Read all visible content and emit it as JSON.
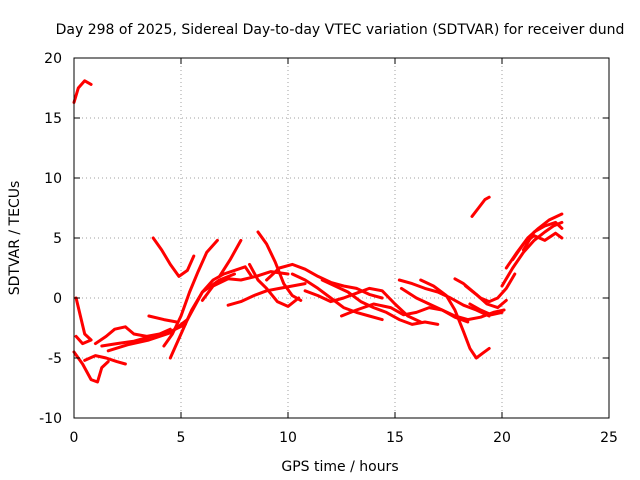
{
  "chart_data": {
    "type": "scatter",
    "title": "Day 298 of 2025, Sidereal Day-to-day VTEC variation (SDTVAR) for receiver dund",
    "xlabel": "GPS time / hours",
    "ylabel": "SDTVAR / TECUs",
    "xlim": [
      0,
      25
    ],
    "ylim": [
      -10,
      20
    ],
    "xticks": [
      0,
      5,
      10,
      15,
      20,
      25
    ],
    "yticks": [
      -10,
      -5,
      0,
      5,
      10,
      15,
      20
    ],
    "xtick_labels": [
      "0",
      "5",
      "10",
      "15",
      "20",
      "25"
    ],
    "ytick_labels": [
      "-10",
      "-5",
      "0",
      "5",
      "10",
      "15",
      "20"
    ],
    "grid": true,
    "color": "#ff0000",
    "series": [
      {
        "name": "arc1",
        "points": [
          [
            0.0,
            16.3
          ],
          [
            0.2,
            17.5
          ],
          [
            0.5,
            18.1
          ],
          [
            0.8,
            17.8
          ]
        ]
      },
      {
        "name": "arc2",
        "points": [
          [
            0.1,
            0.0
          ],
          [
            0.3,
            -1.5
          ],
          [
            0.5,
            -3.0
          ],
          [
            0.8,
            -3.5
          ],
          [
            0.4,
            -3.8
          ],
          [
            0.1,
            -3.2
          ]
        ]
      },
      {
        "name": "arc3",
        "points": [
          [
            0.0,
            -4.5
          ],
          [
            0.4,
            -5.5
          ],
          [
            0.8,
            -6.8
          ],
          [
            1.1,
            -7.0
          ],
          [
            1.3,
            -5.8
          ],
          [
            1.6,
            -5.3
          ]
        ]
      },
      {
        "name": "arc4",
        "points": [
          [
            0.5,
            -5.2
          ],
          [
            1.0,
            -4.8
          ],
          [
            1.5,
            -5.0
          ],
          [
            2.0,
            -5.3
          ],
          [
            2.4,
            -5.5
          ]
        ]
      },
      {
        "name": "arc5",
        "points": [
          [
            1.0,
            -3.8
          ],
          [
            1.5,
            -3.2
          ],
          [
            1.9,
            -2.6
          ],
          [
            2.4,
            -2.4
          ],
          [
            2.8,
            -3.0
          ],
          [
            3.4,
            -3.2
          ],
          [
            4.0,
            -3.0
          ],
          [
            4.5,
            -2.6
          ]
        ]
      },
      {
        "name": "arc6",
        "points": [
          [
            1.3,
            -4.0
          ],
          [
            2.0,
            -3.8
          ],
          [
            2.8,
            -3.6
          ],
          [
            3.6,
            -3.2
          ],
          [
            4.5,
            -2.8
          ],
          [
            5.2,
            -2.2
          ]
        ]
      },
      {
        "name": "arc7",
        "points": [
          [
            1.6,
            -4.4
          ],
          [
            2.5,
            -3.9
          ],
          [
            3.5,
            -3.5
          ],
          [
            4.5,
            -2.9
          ],
          [
            5.3,
            -1.8
          ],
          [
            6.0,
            0.5
          ],
          [
            6.8,
            1.5
          ],
          [
            7.5,
            2.0
          ]
        ]
      },
      {
        "name": "arc8",
        "points": [
          [
            3.5,
            -1.5
          ],
          [
            4.2,
            -1.8
          ],
          [
            4.8,
            -2.0
          ]
        ]
      },
      {
        "name": "arc9",
        "points": [
          [
            3.7,
            5.0
          ],
          [
            4.1,
            4.0
          ],
          [
            4.5,
            2.8
          ],
          [
            4.9,
            1.8
          ],
          [
            5.3,
            2.3
          ],
          [
            5.6,
            3.5
          ]
        ]
      },
      {
        "name": "arc10",
        "points": [
          [
            4.2,
            -4.0
          ],
          [
            4.6,
            -3.0
          ],
          [
            5.0,
            -1.5
          ],
          [
            5.4,
            0.5
          ],
          [
            5.8,
            2.2
          ],
          [
            6.2,
            3.8
          ],
          [
            6.7,
            4.8
          ]
        ]
      },
      {
        "name": "arc11",
        "points": [
          [
            4.5,
            -5.0
          ],
          [
            5.0,
            -3.0
          ],
          [
            5.5,
            -1.0
          ],
          [
            6.0,
            0.5
          ],
          [
            6.5,
            1.5
          ],
          [
            7.0,
            2.0
          ],
          [
            7.5,
            2.3
          ],
          [
            8.0,
            2.6
          ],
          [
            8.3,
            1.8
          ]
        ]
      },
      {
        "name": "arc12",
        "points": [
          [
            6.0,
            -0.2
          ],
          [
            6.5,
            1.0
          ],
          [
            7.2,
            1.6
          ],
          [
            7.8,
            1.5
          ],
          [
            8.5,
            1.8
          ],
          [
            9.2,
            2.2
          ],
          [
            10.0,
            2.0
          ]
        ]
      },
      {
        "name": "arc13",
        "points": [
          [
            6.8,
            1.8
          ],
          [
            7.3,
            3.2
          ],
          [
            7.8,
            4.8
          ]
        ]
      },
      {
        "name": "arc14",
        "points": [
          [
            7.2,
            -0.6
          ],
          [
            7.8,
            -0.3
          ],
          [
            8.4,
            0.2
          ],
          [
            9.0,
            0.6
          ],
          [
            9.6,
            0.8
          ],
          [
            10.2,
            1.0
          ],
          [
            10.8,
            1.2
          ]
        ]
      },
      {
        "name": "arc15",
        "points": [
          [
            8.2,
            2.8
          ],
          [
            8.6,
            1.5
          ],
          [
            9.0,
            0.8
          ],
          [
            9.5,
            -0.3
          ],
          [
            10.0,
            -0.7
          ],
          [
            10.5,
            0.0
          ]
        ]
      },
      {
        "name": "arc16",
        "points": [
          [
            8.6,
            5.5
          ],
          [
            9.0,
            4.5
          ],
          [
            9.4,
            3.0
          ],
          [
            9.8,
            1.2
          ],
          [
            10.2,
            0.2
          ],
          [
            10.6,
            -0.2
          ]
        ]
      },
      {
        "name": "arc17",
        "points": [
          [
            9.0,
            1.5
          ],
          [
            9.6,
            2.5
          ],
          [
            10.2,
            2.8
          ],
          [
            10.8,
            2.4
          ],
          [
            11.4,
            1.8
          ],
          [
            12.0,
            1.3
          ],
          [
            12.6,
            1.0
          ],
          [
            13.2,
            0.8
          ],
          [
            13.8,
            0.3
          ],
          [
            14.4,
            0.0
          ]
        ]
      },
      {
        "name": "arc18",
        "points": [
          [
            10.2,
            2.0
          ],
          [
            10.8,
            1.5
          ],
          [
            11.4,
            0.8
          ],
          [
            12.0,
            0.0
          ],
          [
            12.6,
            -0.8
          ],
          [
            13.2,
            -1.2
          ],
          [
            13.8,
            -1.5
          ],
          [
            14.4,
            -1.8
          ]
        ]
      },
      {
        "name": "arc19",
        "points": [
          [
            10.8,
            0.6
          ],
          [
            11.4,
            0.2
          ],
          [
            12.0,
            -0.3
          ],
          [
            12.6,
            0.0
          ],
          [
            13.2,
            0.4
          ],
          [
            13.8,
            0.8
          ],
          [
            14.4,
            0.6
          ],
          [
            15.0,
            -0.5
          ],
          [
            15.6,
            -1.5
          ],
          [
            16.2,
            -2.0
          ]
        ]
      },
      {
        "name": "arc20",
        "points": [
          [
            11.6,
            1.5
          ],
          [
            12.2,
            1.0
          ],
          [
            12.8,
            0.5
          ],
          [
            13.4,
            -0.3
          ],
          [
            14.0,
            -0.8
          ],
          [
            14.6,
            -1.2
          ],
          [
            15.2,
            -1.8
          ],
          [
            15.8,
            -2.2
          ],
          [
            16.4,
            -2.0
          ],
          [
            17.0,
            -2.2
          ]
        ]
      },
      {
        "name": "arc21",
        "points": [
          [
            12.5,
            -1.5
          ],
          [
            13.2,
            -1.0
          ],
          [
            14.0,
            -0.5
          ],
          [
            14.8,
            -0.8
          ],
          [
            15.4,
            -1.4
          ],
          [
            16.0,
            -1.2
          ],
          [
            16.6,
            -0.8
          ],
          [
            17.2,
            -1.0
          ],
          [
            17.8,
            -1.6
          ],
          [
            18.4,
            -2.0
          ]
        ]
      },
      {
        "name": "arc22",
        "points": [
          [
            15.2,
            1.5
          ],
          [
            15.8,
            1.2
          ],
          [
            16.4,
            0.8
          ],
          [
            17.0,
            0.5
          ],
          [
            17.6,
            0.0
          ],
          [
            18.2,
            -0.6
          ],
          [
            18.8,
            -1.0
          ],
          [
            19.4,
            -1.5
          ]
        ]
      },
      {
        "name": "arc23",
        "points": [
          [
            15.3,
            0.8
          ],
          [
            16.0,
            0.0
          ],
          [
            16.6,
            -0.5
          ],
          [
            17.2,
            -1.0
          ],
          [
            17.8,
            -1.5
          ],
          [
            18.4,
            -1.8
          ],
          [
            19.0,
            -1.6
          ],
          [
            19.6,
            -1.2
          ],
          [
            20.1,
            -1.0
          ]
        ]
      },
      {
        "name": "arc24",
        "points": [
          [
            16.2,
            1.5
          ],
          [
            16.8,
            1.0
          ],
          [
            17.4,
            0.2
          ],
          [
            17.8,
            -1.0
          ],
          [
            18.2,
            -2.8
          ],
          [
            18.5,
            -4.2
          ],
          [
            18.8,
            -5.0
          ],
          [
            19.1,
            -4.6
          ],
          [
            19.4,
            -4.2
          ]
        ]
      },
      {
        "name": "arc25",
        "points": [
          [
            17.8,
            1.6
          ],
          [
            18.2,
            1.2
          ],
          [
            18.6,
            0.6
          ],
          [
            19.0,
            0.0
          ],
          [
            19.4,
            -0.3
          ],
          [
            19.8,
            0.0
          ],
          [
            20.2,
            0.8
          ],
          [
            20.6,
            2.0
          ]
        ]
      },
      {
        "name": "arc26",
        "points": [
          [
            18.3,
            1.0
          ],
          [
            18.8,
            0.3
          ],
          [
            19.3,
            -0.5
          ],
          [
            19.8,
            -0.8
          ],
          [
            20.2,
            -0.2
          ]
        ]
      },
      {
        "name": "arc27",
        "points": [
          [
            18.5,
            -0.5
          ],
          [
            19.0,
            -1.0
          ],
          [
            19.5,
            -1.4
          ],
          [
            20.0,
            -1.2
          ]
        ]
      },
      {
        "name": "arc28",
        "points": [
          [
            18.6,
            6.8
          ],
          [
            18.9,
            7.5
          ],
          [
            19.2,
            8.2
          ],
          [
            19.4,
            8.4
          ]
        ]
      },
      {
        "name": "arc29",
        "points": [
          [
            20.0,
            1.0
          ],
          [
            20.5,
            2.5
          ],
          [
            21.0,
            3.8
          ],
          [
            21.5,
            4.8
          ],
          [
            22.0,
            5.5
          ],
          [
            22.4,
            6.0
          ],
          [
            22.8,
            6.3
          ]
        ]
      },
      {
        "name": "arc30",
        "points": [
          [
            20.2,
            2.5
          ],
          [
            20.7,
            3.8
          ],
          [
            21.2,
            5.0
          ],
          [
            21.7,
            5.8
          ],
          [
            22.2,
            6.5
          ],
          [
            22.8,
            7.0
          ]
        ]
      },
      {
        "name": "arc31",
        "points": [
          [
            20.5,
            3.2
          ],
          [
            21.0,
            4.5
          ],
          [
            21.5,
            5.2
          ],
          [
            22.0,
            4.8
          ],
          [
            22.5,
            5.4
          ],
          [
            22.8,
            5.0
          ]
        ]
      },
      {
        "name": "arc32",
        "points": [
          [
            21.0,
            4.0
          ],
          [
            21.5,
            5.5
          ],
          [
            22.0,
            6.0
          ],
          [
            22.5,
            6.3
          ],
          [
            22.8,
            5.8
          ]
        ]
      }
    ]
  }
}
